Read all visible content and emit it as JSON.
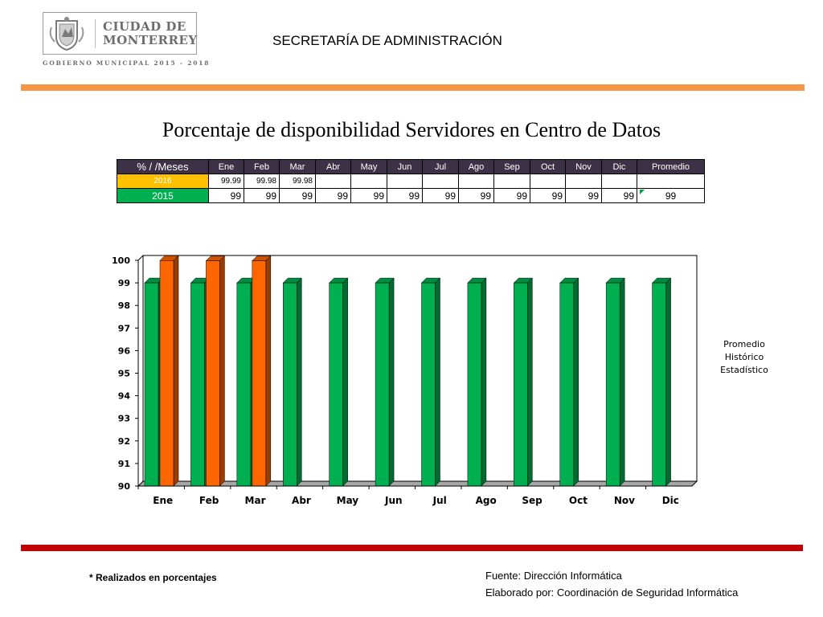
{
  "header": {
    "logo_line1": "CIUDAD DE",
    "logo_line2": "MONTERREY",
    "gov_text": "GOBIERNO MUNICIPAL 2015 - 2018",
    "department": "SECRETARÍA DE ADMINISTRACIÓN"
  },
  "title": "Porcentaje de disponibilidad Servidores en Centro de Datos",
  "table": {
    "corner": "% / /Meses",
    "months": [
      "Ene",
      "Feb",
      "Mar",
      "Abr",
      "May",
      "Jun",
      "Jul",
      "Ago",
      "Sep",
      "Oct",
      "Nov",
      "Dic"
    ],
    "avg_label": "Promedio",
    "rows": [
      {
        "year": "2016",
        "values": [
          "99.99",
          "99.98",
          "99.98",
          "",
          "",
          "",
          "",
          "",
          "",
          "",
          "",
          ""
        ],
        "avg": ""
      },
      {
        "year": "2015",
        "values": [
          "99",
          "99",
          "99",
          "99",
          "99",
          "99",
          "99",
          "99",
          "99",
          "99",
          "99",
          "99"
        ],
        "avg": "99"
      }
    ]
  },
  "chart_data": {
    "type": "bar",
    "categories": [
      "Ene",
      "Feb",
      "Mar",
      "Abr",
      "May",
      "Jun",
      "Jul",
      "Ago",
      "Sep",
      "Oct",
      "Nov",
      "Dic"
    ],
    "series": [
      {
        "name": "2015",
        "color": "#00b050",
        "values": [
          99,
          99,
          99,
          99,
          99,
          99,
          99,
          99,
          99,
          99,
          99,
          99
        ]
      },
      {
        "name": "2016",
        "color": "#ff6600",
        "values": [
          99.99,
          99.98,
          99.98,
          null,
          null,
          null,
          null,
          null,
          null,
          null,
          null,
          null
        ]
      }
    ],
    "ylim": [
      90,
      100
    ],
    "yticks": [
      90,
      91,
      92,
      93,
      94,
      95,
      96,
      97,
      98,
      99,
      100
    ],
    "legend_text": [
      "Promedio",
      "Histórico",
      "Estadístico"
    ]
  },
  "footer": {
    "note": "* Realizados en porcentajes",
    "source": "Fuente: Dirección  Informática",
    "made_by": "Elaborado por: Coordinación de Seguridad Informática"
  },
  "colors": {
    "orange_rule": "#f79646",
    "red_rule": "#c00000",
    "header_bg": "#3c3146"
  }
}
